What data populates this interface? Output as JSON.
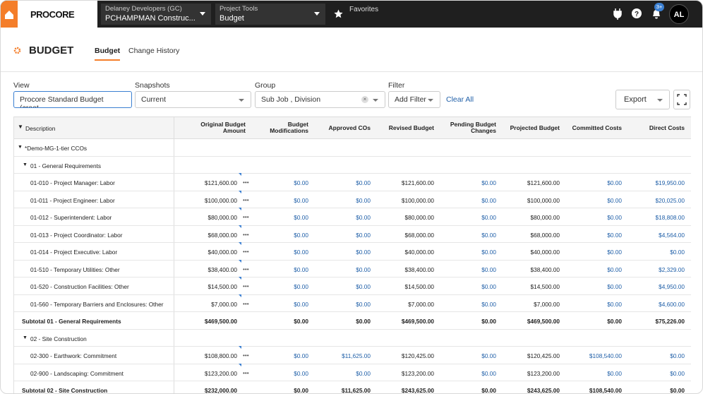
{
  "nav": {
    "logo": "PROCORE",
    "company_label": "Delaney Developers (GC)",
    "company": "PCHAMPMAN Construc...",
    "tools_label": "Project Tools",
    "tool": "Budget",
    "favorites": "Favorites",
    "badge": "3+",
    "avatar": "AL"
  },
  "header": {
    "title": "BUDGET",
    "tabs": [
      "Budget",
      "Change History"
    ]
  },
  "filters": {
    "view_label": "View",
    "view": "Procore Standard Budget (creat...",
    "snapshots_label": "Snapshots",
    "snapshot": "Current",
    "group_label": "Group",
    "group": "Sub Job , Division",
    "filter_label": "Filter",
    "filter": "Add Filter",
    "clear": "Clear All",
    "export": "Export"
  },
  "table": {
    "columns": [
      "Description",
      "Original Budget Amount",
      "Budget Modifications",
      "Approved COs",
      "Revised Budget",
      "Pending Budget Changes",
      "Projected Budget",
      "Committed Costs",
      "Direct Costs"
    ],
    "groups": [
      {
        "label": "*Demo-MG-1-tier CCOs",
        "sections": [
          {
            "label": "01 - General Requirements",
            "items": [
              {
                "label": "01-010 - Project Manager: Labor",
                "values": [
                  "$121,600.00",
                  "$0.00",
                  "$0.00",
                  "$121,600.00",
                  "$0.00",
                  "$121,600.00",
                  "$0.00",
                  "$19,950.00"
                ]
              },
              {
                "label": "01-011 - Project Engineer: Labor",
                "values": [
                  "$100,000.00",
                  "$0.00",
                  "$0.00",
                  "$100,000.00",
                  "$0.00",
                  "$100,000.00",
                  "$0.00",
                  "$20,025.00"
                ]
              },
              {
                "label": "01-012 - Superintendent: Labor",
                "values": [
                  "$80,000.00",
                  "$0.00",
                  "$0.00",
                  "$80,000.00",
                  "$0.00",
                  "$80,000.00",
                  "$0.00",
                  "$18,808.00"
                ]
              },
              {
                "label": "01-013 - Project Coordinator: Labor",
                "values": [
                  "$68,000.00",
                  "$0.00",
                  "$0.00",
                  "$68,000.00",
                  "$0.00",
                  "$68,000.00",
                  "$0.00",
                  "$4,564.00"
                ]
              },
              {
                "label": "01-014 - Project Executive: Labor",
                "values": [
                  "$40,000.00",
                  "$0.00",
                  "$0.00",
                  "$40,000.00",
                  "$0.00",
                  "$40,000.00",
                  "$0.00",
                  "$0.00"
                ]
              },
              {
                "label": "01-510 - Temporary Utilities: Other",
                "values": [
                  "$38,400.00",
                  "$0.00",
                  "$0.00",
                  "$38,400.00",
                  "$0.00",
                  "$38,400.00",
                  "$0.00",
                  "$2,329.00"
                ]
              },
              {
                "label": "01-520 - Construction Facilities: Other",
                "values": [
                  "$14,500.00",
                  "$0.00",
                  "$0.00",
                  "$14,500.00",
                  "$0.00",
                  "$14,500.00",
                  "$0.00",
                  "$4,950.00"
                ]
              },
              {
                "label": "01-560 - Temporary Barriers and Enclosures: Other",
                "values": [
                  "$7,000.00",
                  "$0.00",
                  "$0.00",
                  "$7,000.00",
                  "$0.00",
                  "$7,000.00",
                  "$0.00",
                  "$4,600.00"
                ]
              }
            ],
            "subtotal": {
              "label": "Subtotal 01 - General Requirements",
              "values": [
                "$469,500.00",
                "$0.00",
                "$0.00",
                "$469,500.00",
                "$0.00",
                "$469,500.00",
                "$0.00",
                "$75,226.00"
              ]
            }
          },
          {
            "label": "02 - Site Construction",
            "items": [
              {
                "label": "02-300 - Earthwork: Commitment",
                "values": [
                  "$108,800.00",
                  "$0.00",
                  "$11,625.00",
                  "$120,425.00",
                  "$0.00",
                  "$120,425.00",
                  "$108,540.00",
                  "$0.00"
                ]
              },
              {
                "label": "02-900 - Landscaping: Commitment",
                "values": [
                  "$123,200.00",
                  "$0.00",
                  "$0.00",
                  "$123,200.00",
                  "$0.00",
                  "$123,200.00",
                  "$0.00",
                  "$0.00"
                ]
              }
            ],
            "subtotal": {
              "label": "Subtotal 02 - Site Construction",
              "values": [
                "$232,000.00",
                "$0.00",
                "$11,625.00",
                "$243,625.00",
                "$0.00",
                "$243,625.00",
                "$108,540.00",
                "$0.00"
              ]
            }
          }
        ]
      }
    ]
  }
}
